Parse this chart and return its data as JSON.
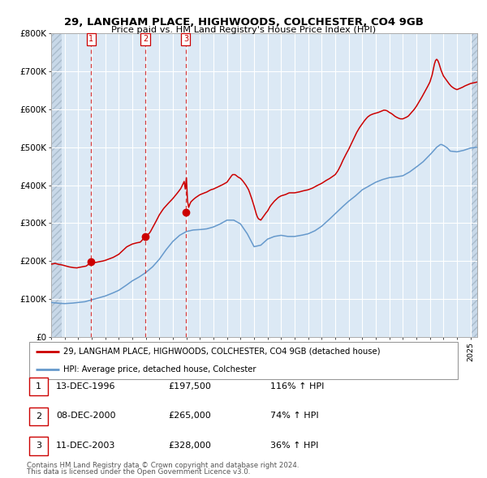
{
  "title": "29, LANGHAM PLACE, HIGHWOODS, COLCHESTER, CO4 9GB",
  "subtitle": "Price paid vs. HM Land Registry's House Price Index (HPI)",
  "legend_line1": "29, LANGHAM PLACE, HIGHWOODS, COLCHESTER, CO4 9GB (detached house)",
  "legend_line2": "HPI: Average price, detached house, Colchester",
  "footer1": "Contains HM Land Registry data © Crown copyright and database right 2024.",
  "footer2": "This data is licensed under the Open Government Licence v3.0.",
  "sale_prices": [
    197500,
    265000,
    328000
  ],
  "sale_labels": [
    "1",
    "2",
    "3"
  ],
  "sale_year_floats": [
    1996.958,
    2000.958,
    2003.958
  ],
  "sale_info": [
    {
      "label": "1",
      "date": "13-DEC-1996",
      "price": "£197,500",
      "hpi": "116% ↑ HPI"
    },
    {
      "label": "2",
      "date": "08-DEC-2000",
      "price": "£265,000",
      "hpi": "74% ↑ HPI"
    },
    {
      "label": "3",
      "date": "11-DEC-2003",
      "price": "£328,000",
      "hpi": "36% ↑ HPI"
    }
  ],
  "red_color": "#cc0000",
  "blue_color": "#6699cc",
  "bg_color": "#dce9f5",
  "hatch_color": "#c8d8e8",
  "grid_color": "#ffffff",
  "dashed_color": "#cc0000",
  "ylim": [
    0,
    800000
  ],
  "xlim_start": 1994.0,
  "xlim_end": 2025.5,
  "hatch_left_end": 1994.75,
  "hatch_right_start": 2025.0,
  "yticks": [
    0,
    100000,
    200000,
    300000,
    400000,
    500000,
    600000,
    700000,
    800000
  ],
  "ytick_labels": [
    "£0",
    "£100K",
    "£200K",
    "£300K",
    "£400K",
    "£500K",
    "£600K",
    "£700K",
    "£800K"
  ],
  "hpi_keypoints": [
    [
      1994.0,
      91000
    ],
    [
      1994.5,
      89000
    ],
    [
      1995.0,
      88000
    ],
    [
      1995.5,
      89000
    ],
    [
      1996.0,
      91000
    ],
    [
      1996.5,
      93000
    ],
    [
      1997.0,
      98000
    ],
    [
      1997.5,
      103000
    ],
    [
      1998.0,
      108000
    ],
    [
      1998.5,
      115000
    ],
    [
      1999.0,
      123000
    ],
    [
      1999.5,
      135000
    ],
    [
      2000.0,
      148000
    ],
    [
      2000.5,
      158000
    ],
    [
      2001.0,
      170000
    ],
    [
      2001.5,
      185000
    ],
    [
      2002.0,
      205000
    ],
    [
      2002.5,
      230000
    ],
    [
      2003.0,
      252000
    ],
    [
      2003.5,
      268000
    ],
    [
      2004.0,
      278000
    ],
    [
      2004.5,
      282000
    ],
    [
      2005.0,
      283000
    ],
    [
      2005.5,
      285000
    ],
    [
      2006.0,
      290000
    ],
    [
      2006.5,
      298000
    ],
    [
      2007.0,
      308000
    ],
    [
      2007.5,
      308000
    ],
    [
      2008.0,
      298000
    ],
    [
      2008.5,
      272000
    ],
    [
      2009.0,
      238000
    ],
    [
      2009.5,
      242000
    ],
    [
      2010.0,
      258000
    ],
    [
      2010.5,
      265000
    ],
    [
      2011.0,
      268000
    ],
    [
      2011.5,
      265000
    ],
    [
      2012.0,
      265000
    ],
    [
      2012.5,
      268000
    ],
    [
      2013.0,
      272000
    ],
    [
      2013.5,
      280000
    ],
    [
      2014.0,
      292000
    ],
    [
      2014.5,
      308000
    ],
    [
      2015.0,
      325000
    ],
    [
      2015.5,
      342000
    ],
    [
      2016.0,
      358000
    ],
    [
      2016.5,
      372000
    ],
    [
      2017.0,
      388000
    ],
    [
      2017.5,
      398000
    ],
    [
      2018.0,
      408000
    ],
    [
      2018.5,
      415000
    ],
    [
      2019.0,
      420000
    ],
    [
      2019.5,
      422000
    ],
    [
      2020.0,
      425000
    ],
    [
      2020.5,
      435000
    ],
    [
      2021.0,
      448000
    ],
    [
      2021.5,
      462000
    ],
    [
      2022.0,
      480000
    ],
    [
      2022.5,
      500000
    ],
    [
      2022.8,
      508000
    ],
    [
      2023.0,
      505000
    ],
    [
      2023.3,
      498000
    ],
    [
      2023.5,
      490000
    ],
    [
      2024.0,
      488000
    ],
    [
      2024.5,
      492000
    ],
    [
      2025.0,
      498000
    ],
    [
      2025.5,
      500000
    ]
  ],
  "red_keypoints": [
    [
      1994.0,
      192000
    ],
    [
      1994.3,
      194000
    ],
    [
      1994.5,
      192000
    ],
    [
      1994.8,
      190000
    ],
    [
      1995.0,
      188000
    ],
    [
      1995.3,
      185000
    ],
    [
      1995.6,
      183000
    ],
    [
      1995.9,
      182000
    ],
    [
      1996.0,
      183000
    ],
    [
      1996.3,
      185000
    ],
    [
      1996.6,
      187000
    ],
    [
      1996.958,
      197500
    ],
    [
      1997.2,
      196000
    ],
    [
      1997.5,
      198000
    ],
    [
      1997.8,
      200000
    ],
    [
      1998.0,
      202000
    ],
    [
      1998.3,
      206000
    ],
    [
      1998.6,
      210000
    ],
    [
      1999.0,
      218000
    ],
    [
      1999.3,
      228000
    ],
    [
      1999.6,
      238000
    ],
    [
      2000.0,
      245000
    ],
    [
      2000.3,
      248000
    ],
    [
      2000.6,
      250000
    ],
    [
      2000.958,
      265000
    ],
    [
      2001.1,
      268000
    ],
    [
      2001.3,
      275000
    ],
    [
      2001.5,
      288000
    ],
    [
      2001.8,
      308000
    ],
    [
      2002.0,
      322000
    ],
    [
      2002.3,
      338000
    ],
    [
      2002.6,
      350000
    ],
    [
      2003.0,
      365000
    ],
    [
      2003.3,
      378000
    ],
    [
      2003.6,
      392000
    ],
    [
      2003.9,
      415000
    ],
    [
      2004.0,
      420000
    ],
    [
      2004.1,
      345000
    ],
    [
      2003.958,
      328000
    ],
    [
      2004.15,
      340000
    ],
    [
      2004.3,
      355000
    ],
    [
      2004.5,
      362000
    ],
    [
      2004.7,
      368000
    ],
    [
      2005.0,
      375000
    ],
    [
      2005.2,
      378000
    ],
    [
      2005.5,
      382000
    ],
    [
      2005.8,
      388000
    ],
    [
      2006.0,
      390000
    ],
    [
      2006.3,
      395000
    ],
    [
      2006.6,
      400000
    ],
    [
      2007.0,
      408000
    ],
    [
      2007.2,
      418000
    ],
    [
      2007.4,
      428000
    ],
    [
      2007.6,
      428000
    ],
    [
      2007.8,
      422000
    ],
    [
      2008.0,
      418000
    ],
    [
      2008.2,
      410000
    ],
    [
      2008.4,
      400000
    ],
    [
      2008.6,
      388000
    ],
    [
      2008.8,
      368000
    ],
    [
      2009.0,
      345000
    ],
    [
      2009.1,
      332000
    ],
    [
      2009.2,
      320000
    ],
    [
      2009.3,
      312000
    ],
    [
      2009.5,
      308000
    ],
    [
      2009.7,
      318000
    ],
    [
      2009.9,
      328000
    ],
    [
      2010.0,
      332000
    ],
    [
      2010.2,
      345000
    ],
    [
      2010.5,
      358000
    ],
    [
      2010.8,
      368000
    ],
    [
      2011.0,
      372000
    ],
    [
      2011.3,
      375000
    ],
    [
      2011.6,
      380000
    ],
    [
      2012.0,
      380000
    ],
    [
      2012.3,
      382000
    ],
    [
      2012.6,
      385000
    ],
    [
      2013.0,
      388000
    ],
    [
      2013.3,
      392000
    ],
    [
      2013.6,
      398000
    ],
    [
      2014.0,
      405000
    ],
    [
      2014.3,
      412000
    ],
    [
      2014.6,
      418000
    ],
    [
      2015.0,
      428000
    ],
    [
      2015.2,
      438000
    ],
    [
      2015.4,
      452000
    ],
    [
      2015.6,
      468000
    ],
    [
      2015.8,
      482000
    ],
    [
      2016.0,
      495000
    ],
    [
      2016.2,
      510000
    ],
    [
      2016.4,
      525000
    ],
    [
      2016.6,
      540000
    ],
    [
      2016.8,
      552000
    ],
    [
      2017.0,
      562000
    ],
    [
      2017.2,
      572000
    ],
    [
      2017.4,
      580000
    ],
    [
      2017.6,
      585000
    ],
    [
      2017.8,
      588000
    ],
    [
      2018.0,
      590000
    ],
    [
      2018.2,
      592000
    ],
    [
      2018.4,
      595000
    ],
    [
      2018.6,
      598000
    ],
    [
      2018.8,
      597000
    ],
    [
      2019.0,
      592000
    ],
    [
      2019.2,
      588000
    ],
    [
      2019.4,
      582000
    ],
    [
      2019.6,
      578000
    ],
    [
      2019.8,
      575000
    ],
    [
      2020.0,
      575000
    ],
    [
      2020.2,
      578000
    ],
    [
      2020.4,
      582000
    ],
    [
      2020.6,
      590000
    ],
    [
      2020.8,
      598000
    ],
    [
      2021.0,
      608000
    ],
    [
      2021.2,
      620000
    ],
    [
      2021.4,
      632000
    ],
    [
      2021.6,
      645000
    ],
    [
      2021.8,
      658000
    ],
    [
      2022.0,
      672000
    ],
    [
      2022.2,
      695000
    ],
    [
      2022.3,
      715000
    ],
    [
      2022.4,
      728000
    ],
    [
      2022.5,
      732000
    ],
    [
      2022.6,
      728000
    ],
    [
      2022.7,
      718000
    ],
    [
      2022.8,
      705000
    ],
    [
      2023.0,
      688000
    ],
    [
      2023.2,
      678000
    ],
    [
      2023.4,
      668000
    ],
    [
      2023.6,
      660000
    ],
    [
      2023.8,
      655000
    ],
    [
      2024.0,
      652000
    ],
    [
      2024.2,
      655000
    ],
    [
      2024.4,
      658000
    ],
    [
      2024.6,
      662000
    ],
    [
      2024.8,
      665000
    ],
    [
      2025.0,
      668000
    ],
    [
      2025.5,
      672000
    ]
  ]
}
